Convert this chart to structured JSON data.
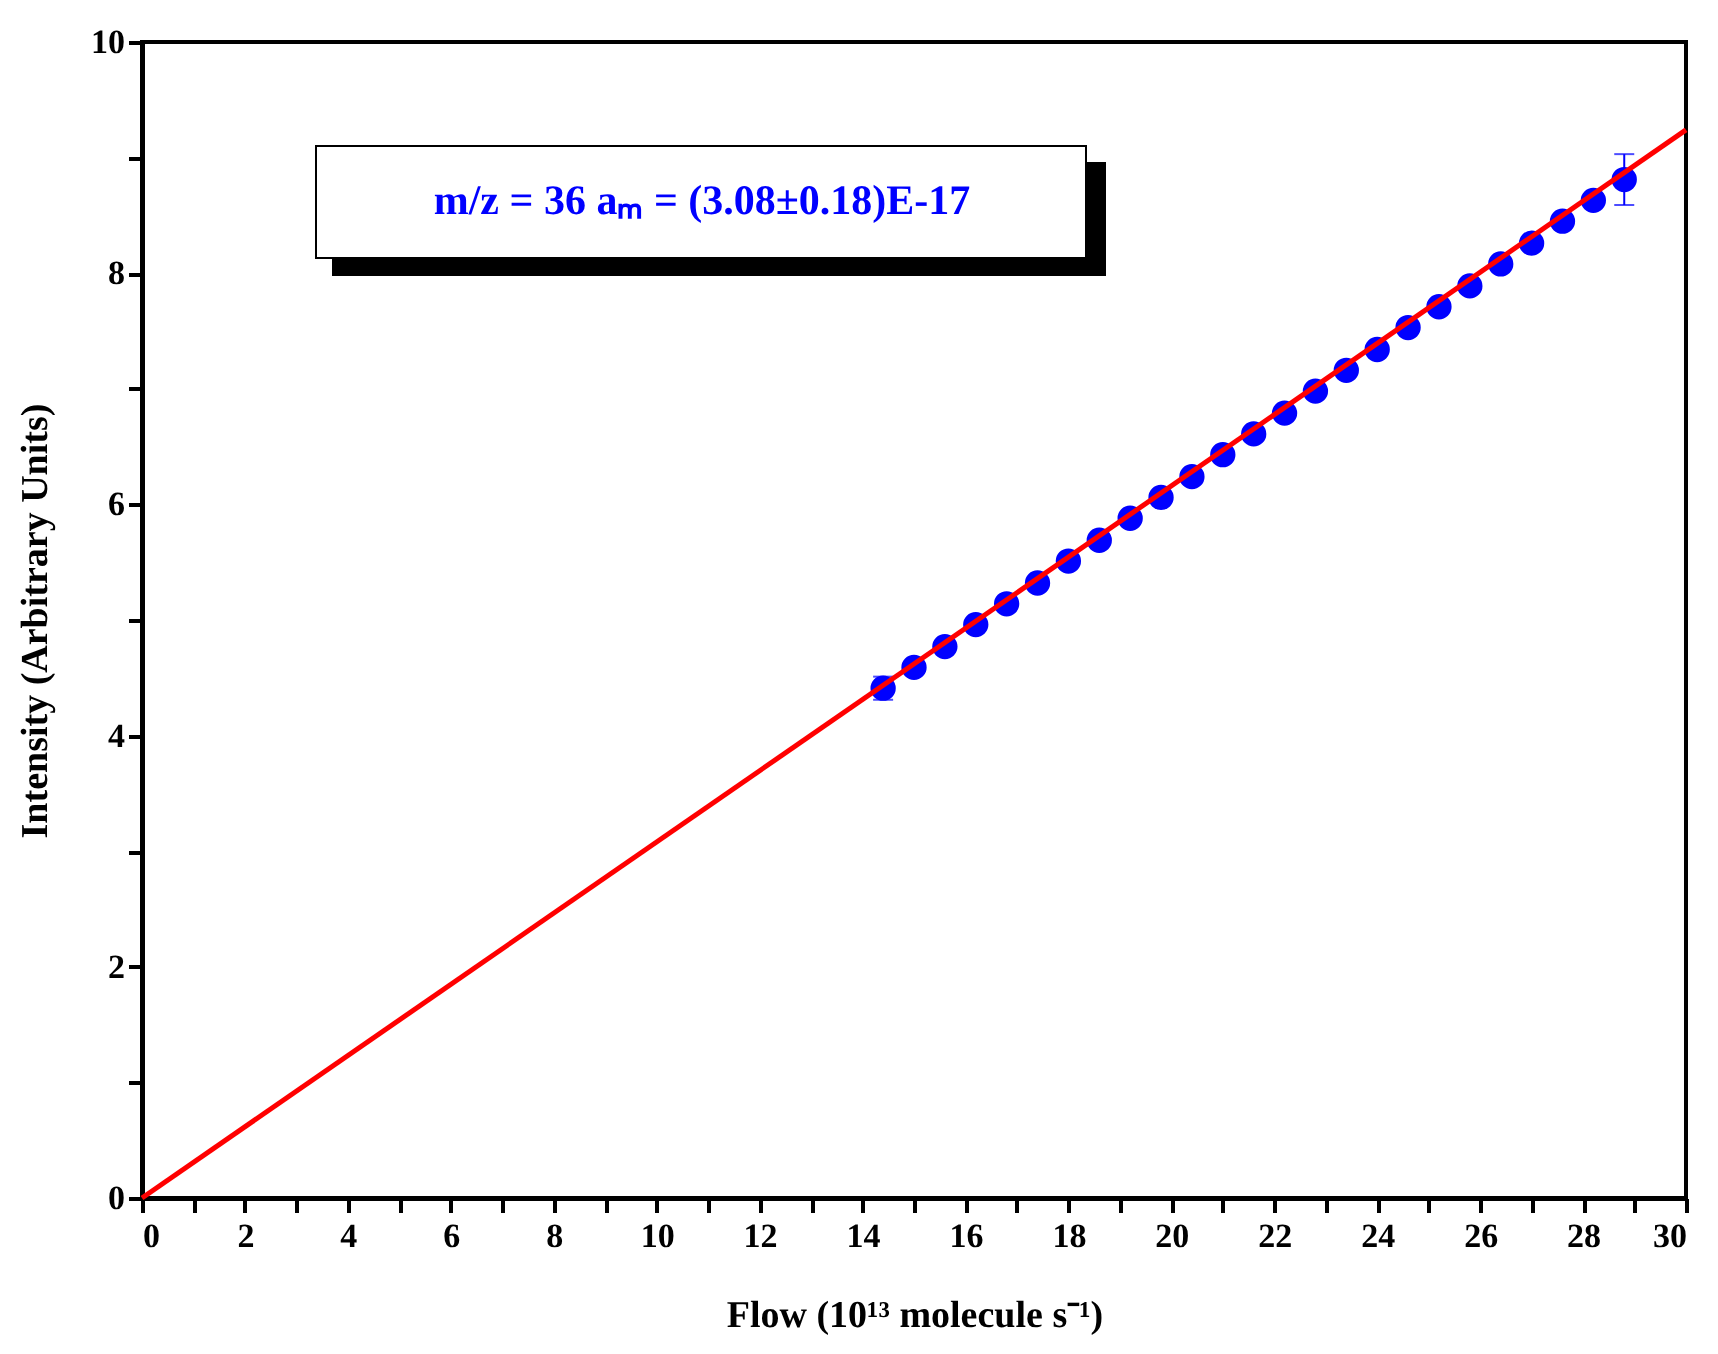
{
  "chart_data": {
    "type": "scatter",
    "xlabel": "Flow (10¹³ molecule s⁻¹)",
    "ylabel": "Intensity (Arbitrary Units)",
    "annotations": [
      "m/z = 36  aₘ = (3.08±0.18)E-17"
    ],
    "xlim": [
      0,
      30
    ],
    "ylim": [
      0,
      10
    ],
    "xticks": [
      0,
      {
        "value": 1,
        "label": null
      },
      2,
      {
        "value": 3,
        "label": null
      },
      4,
      {
        "value": 5,
        "label": null
      },
      6,
      {
        "value": 7,
        "label": null
      },
      8,
      {
        "value": 9,
        "label": null
      },
      10,
      {
        "value": 11,
        "label": null
      },
      12,
      {
        "value": 13,
        "label": null
      },
      14,
      {
        "value": 15,
        "label": null
      },
      16,
      {
        "value": 17,
        "label": null
      },
      18,
      {
        "value": 19,
        "label": null
      },
      20,
      {
        "value": 21,
        "label": null
      },
      22,
      {
        "value": 23,
        "label": null
      },
      24,
      {
        "value": 25,
        "label": null
      },
      26,
      {
        "value": 27,
        "label": null
      },
      28,
      {
        "value": 29,
        "label": null
      },
      30
    ],
    "yticks": [
      0,
      {
        "value": 1,
        "label": null
      },
      2,
      {
        "value": 3,
        "label": null
      },
      4,
      {
        "value": 5,
        "label": null
      },
      6,
      {
        "value": 7,
        "label": null
      },
      8,
      {
        "value": 9,
        "label": null
      },
      10
    ],
    "grid": false,
    "series": [
      {
        "type": "scatter",
        "marker": "circle",
        "color": "#0000ff",
        "x": [
          14.4,
          15.0,
          15.6,
          16.2,
          16.8,
          17.4,
          18.0,
          18.6,
          19.2,
          19.8,
          20.4,
          21.0,
          21.6,
          22.2,
          22.8,
          23.4,
          24.0,
          24.6,
          25.2,
          25.8,
          26.4,
          27.0,
          27.6,
          28.2,
          28.8
        ],
        "values": [
          4.41,
          4.59,
          4.77,
          4.96,
          5.14,
          5.32,
          5.51,
          5.69,
          5.88,
          6.06,
          6.24,
          6.43,
          6.61,
          6.79,
          6.98,
          7.16,
          7.34,
          7.53,
          7.71,
          7.89,
          8.08,
          8.26,
          8.45,
          8.63,
          8.81
        ],
        "errors": [
          0.1,
          null,
          null,
          null,
          null,
          null,
          null,
          null,
          null,
          null,
          null,
          null,
          null,
          null,
          null,
          null,
          null,
          null,
          null,
          null,
          null,
          null,
          null,
          null,
          0.22
        ]
      },
      {
        "type": "line",
        "color": "#ff0000",
        "x": [
          0,
          30
        ],
        "values": [
          0,
          9.24
        ]
      }
    ]
  }
}
